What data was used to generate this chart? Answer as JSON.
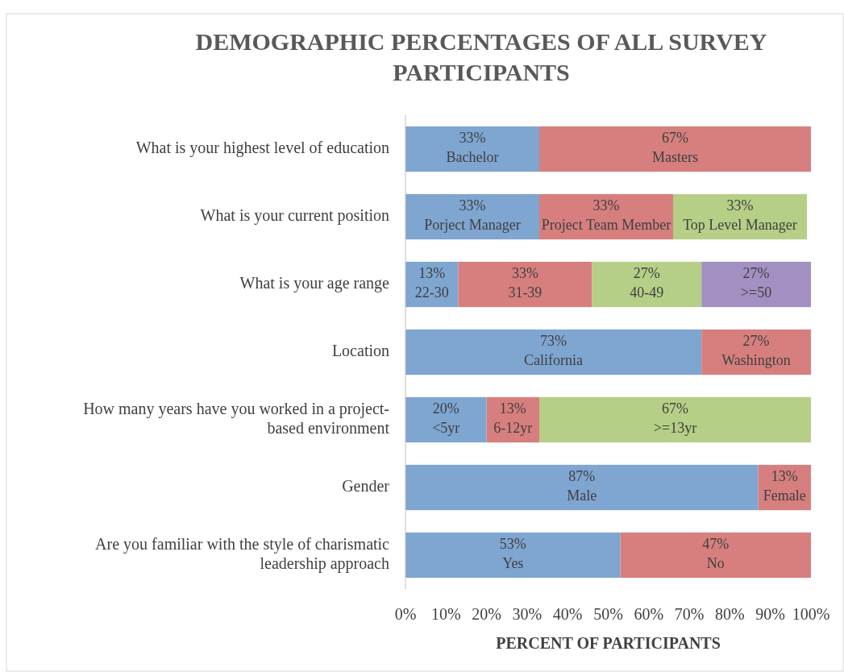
{
  "chart_data": {
    "type": "bar",
    "orientation": "horizontal",
    "stacked": true,
    "title": "DEMOGRAPHIC PERCENTAGES OF ALL SURVEY PARTICIPANTS",
    "xlabel": "PERCENT OF PARTICIPANTS",
    "categories": [
      "What is your highest level of education",
      "What is your current position",
      "What is your age range",
      "Location",
      "How many years have you worked in a project-based environment",
      "Gender",
      "Are you familiar with the style of charismatic leadership approach"
    ],
    "xlim": [
      0,
      100
    ],
    "xticks": [
      {
        "value": 0,
        "label": "0%"
      },
      {
        "value": 10,
        "label": "10%"
      },
      {
        "value": 20,
        "label": "20%"
      },
      {
        "value": 30,
        "label": "30%"
      },
      {
        "value": 40,
        "label": "40%"
      },
      {
        "value": 50,
        "label": "50%"
      },
      {
        "value": 60,
        "label": "60%"
      },
      {
        "value": 70,
        "label": "70%"
      },
      {
        "value": 80,
        "label": "80%"
      },
      {
        "value": 90,
        "label": "90%"
      },
      {
        "value": 100,
        "label": "100%"
      }
    ],
    "grid": false,
    "series": [
      {
        "color": "#7fa5d1",
        "values": [
          33,
          33,
          13,
          73,
          20,
          87,
          53
        ],
        "value_labels": [
          "33%\nBachelor",
          "33%\nPorject Manager",
          "13%\n22-30",
          "73%\nCalifornia",
          "20%\n<5yr",
          "87%\nMale",
          "53%\nYes"
        ]
      },
      {
        "color": "#d67f7e",
        "values": [
          67,
          33,
          33,
          27,
          13,
          13,
          47
        ],
        "value_labels": [
          "67%\nMasters",
          "33%\nProject Team Member",
          "33%\n31-39",
          "27%\nWashington",
          "13%\n6-12yr",
          "13%\nFemale",
          "47%\nNo"
        ]
      },
      {
        "color": "#b6cf87",
        "values": [
          null,
          33,
          27,
          null,
          67,
          null,
          null
        ],
        "value_labels": [
          null,
          "33%\nTop Level Manager",
          "27%\n40-49",
          null,
          "67%\n>=13yr",
          null,
          null
        ]
      },
      {
        "color": "#a390c2",
        "values": [
          null,
          null,
          27,
          null,
          null,
          null,
          null
        ],
        "value_labels": [
          null,
          null,
          "27%\n>=50",
          null,
          null,
          null,
          null
        ]
      }
    ]
  }
}
